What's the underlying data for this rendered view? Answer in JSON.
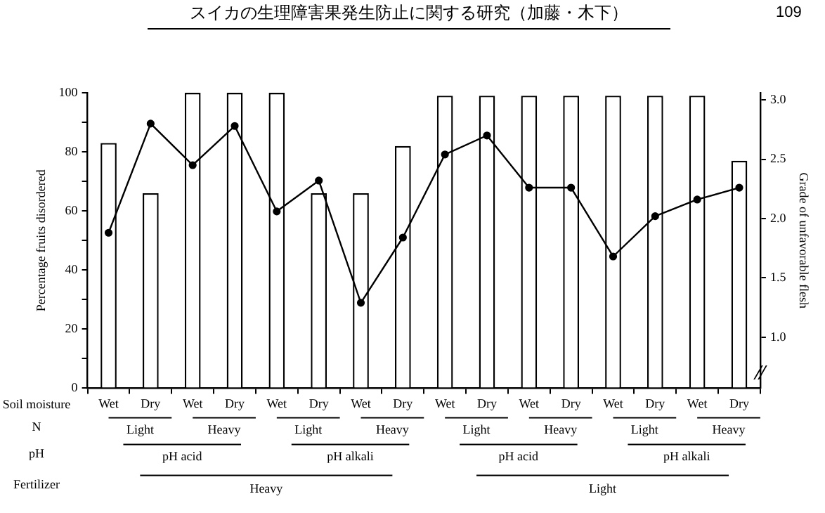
{
  "chart_data": {
    "type": "bar",
    "title": "スイカの生理障害果発生防止に関する研究（加藤・木下）",
    "ylabel": "Percentage fruits disordered",
    "y2label": "Grade of unfavorable flesh",
    "categories": [
      "Wet",
      "Dry",
      "Wet",
      "Dry",
      "Wet",
      "Dry",
      "Wet",
      "Dry",
      "Wet",
      "Dry",
      "Wet",
      "Dry",
      "Wet",
      "Dry",
      "Wet",
      "Dry"
    ],
    "series": [
      {
        "color": "#ffffff",
        "values": [
          83,
          66,
          100,
          100,
          100,
          66,
          66,
          82,
          99,
          99,
          99,
          99,
          99,
          99,
          99,
          77
        ]
      },
      {
        "type": "line",
        "axis": "y2",
        "color": "#000000",
        "marker": "circle",
        "values": [
          1.88,
          2.8,
          2.45,
          2.78,
          2.06,
          2.32,
          1.29,
          1.84,
          2.54,
          2.7,
          2.26,
          2.26,
          1.68,
          2.02,
          2.16,
          2.26
        ]
      }
    ],
    "ylim": [
      0,
      100
    ],
    "yticks": [
      0,
      {
        "value": 10,
        "label": null
      },
      20,
      {
        "value": 30,
        "label": null
      },
      40,
      {
        "value": 50,
        "label": null
      },
      60,
      {
        "value": 70,
        "label": null
      },
      80,
      {
        "value": 90,
        "label": null
      },
      100
    ],
    "y2lim": [
      0.57,
      3.06
    ],
    "y2ticks": [
      {
        "value": 1,
        "label": "1.0"
      },
      {
        "value": 1.5,
        "label": "1.5"
      },
      {
        "value": 2,
        "label": "2.0"
      },
      {
        "value": 2.5,
        "label": "2.5"
      },
      {
        "value": 3,
        "label": "3.0"
      }
    ],
    "grid": false,
    "legend": false,
    "annotations": [
      "109",
      "Soil moisture",
      "N",
      "pH",
      "Fertilizer",
      "Light",
      "Heavy",
      "Light",
      "Heavy",
      "Light",
      "Heavy",
      "Light",
      "Heavy",
      "pH acid",
      "pH alkali",
      "pH acid",
      "pH alkali",
      "Heavy",
      "Light"
    ]
  }
}
